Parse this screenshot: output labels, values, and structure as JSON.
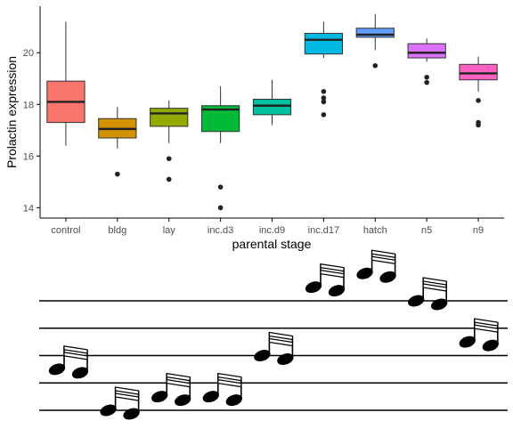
{
  "chart_data": {
    "type": "box",
    "title": "",
    "xlabel": "parental stage",
    "ylabel": "Prolactin expression",
    "ylim": [
      13.6,
      21.8
    ],
    "y_ticks": [
      14,
      16,
      18,
      20
    ],
    "grid": false,
    "legend": "none",
    "categories": [
      "control",
      "bldg",
      "lay",
      "inc.d3",
      "inc.d9",
      "inc.d17",
      "hatch",
      "n5",
      "n9"
    ],
    "colors": [
      "#F8766D",
      "#D39200",
      "#93AA00",
      "#00BA38",
      "#00C19F",
      "#00B9E3",
      "#619CFF",
      "#DB72FB",
      "#FF61C3"
    ],
    "boxes": [
      {
        "category": "control",
        "lower_whisker": 16.4,
        "q1": 17.3,
        "median": 18.1,
        "q3": 18.9,
        "upper_whisker": 21.2,
        "outliers": []
      },
      {
        "category": "bldg",
        "lower_whisker": 16.3,
        "q1": 16.7,
        "median": 17.05,
        "q3": 17.45,
        "upper_whisker": 17.9,
        "outliers": [
          15.3
        ]
      },
      {
        "category": "lay",
        "lower_whisker": 16.5,
        "q1": 17.15,
        "median": 17.65,
        "q3": 17.85,
        "upper_whisker": 18.15,
        "outliers": [
          15.9,
          15.1
        ]
      },
      {
        "category": "inc.d3",
        "lower_whisker": 16.5,
        "q1": 16.95,
        "median": 17.8,
        "q3": 17.95,
        "upper_whisker": 18.7,
        "outliers": [
          14.8,
          14.0
        ]
      },
      {
        "category": "inc.d9",
        "lower_whisker": 17.2,
        "q1": 17.6,
        "median": 17.95,
        "q3": 18.2,
        "upper_whisker": 18.95,
        "outliers": []
      },
      {
        "category": "inc.d17",
        "lower_whisker": 19.8,
        "q1": 19.95,
        "median": 20.5,
        "q3": 20.75,
        "upper_whisker": 21.2,
        "outliers": [
          18.5,
          18.25,
          18.1,
          17.6
        ]
      },
      {
        "category": "hatch",
        "lower_whisker": 20.1,
        "q1": 20.6,
        "median": 20.7,
        "q3": 20.95,
        "upper_whisker": 21.5,
        "outliers": [
          19.5
        ]
      },
      {
        "category": "n5",
        "lower_whisker": 19.65,
        "q1": 19.8,
        "median": 20.0,
        "q3": 20.35,
        "upper_whisker": 20.55,
        "outliers": [
          19.05,
          18.85
        ]
      },
      {
        "category": "n9",
        "lower_whisker": 18.5,
        "q1": 18.95,
        "median": 19.2,
        "q3": 19.55,
        "upper_whisker": 19.85,
        "outliers": [
          18.15,
          17.3,
          17.2
        ]
      }
    ],
    "music_staff": {
      "staff_lines": 5,
      "note_glyph": "beamed-sixteenth-notes",
      "note_pitch_steps": [
        3,
        0,
        1,
        1,
        4,
        9,
        10,
        8,
        5
      ]
    }
  }
}
